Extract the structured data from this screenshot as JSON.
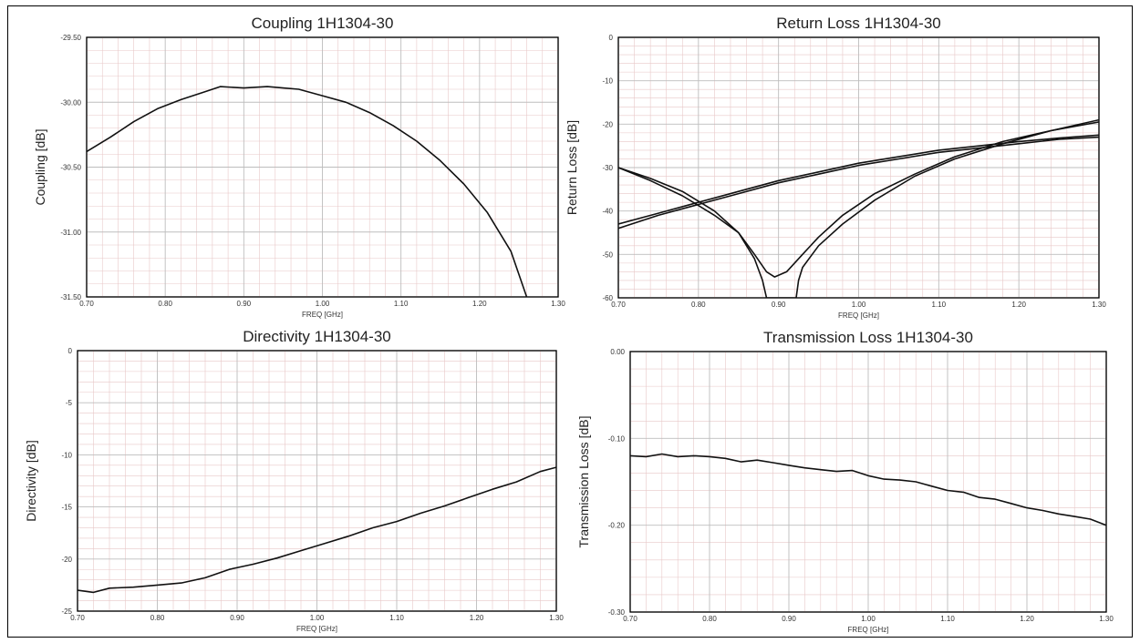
{
  "chart_data": [
    {
      "type": "line",
      "title": "Coupling 1H1304-30",
      "xlabel": "FREQ [GHz]",
      "ylabel": "Coupling [dB]",
      "xlim": [
        0.7,
        1.3
      ],
      "ylim": [
        -31.5,
        -29.5
      ],
      "xticks": [
        "0.70",
        "0.80",
        "0.90",
        "1.00",
        "1.10",
        "1.20",
        "1.30"
      ],
      "yticks": [
        "-29.50",
        "-30.00",
        "-30.50",
        "-31.00",
        "-31.50"
      ],
      "series": [
        {
          "x": [
            0.7,
            0.73,
            0.76,
            0.79,
            0.82,
            0.85,
            0.87,
            0.9,
            0.93,
            0.95,
            0.97,
            1.0,
            1.03,
            1.06,
            1.09,
            1.12,
            1.15,
            1.18,
            1.21,
            1.24,
            1.26
          ],
          "y": [
            -30.38,
            -30.27,
            -30.15,
            -30.05,
            -29.98,
            -29.92,
            -29.88,
            -29.89,
            -29.88,
            -29.89,
            -29.9,
            -29.95,
            -30.0,
            -30.08,
            -30.18,
            -30.3,
            -30.45,
            -30.63,
            -30.85,
            -31.15,
            -31.5
          ]
        }
      ]
    },
    {
      "type": "line",
      "title": "Return Loss 1H1304-30",
      "xlabel": "FREQ [GHz]",
      "ylabel": "Return Loss [dB]",
      "xlim": [
        0.7,
        1.3
      ],
      "ylim": [
        -60,
        0
      ],
      "xticks": [
        "0.70",
        "0.80",
        "0.90",
        "1.00",
        "1.10",
        "1.20",
        "1.30"
      ],
      "yticks": [
        "0",
        "-10",
        "-20",
        "-30",
        "-40",
        "-50",
        "-60"
      ],
      "series": [
        {
          "x": [
            0.7,
            0.75,
            0.8,
            0.85,
            0.9,
            0.95,
            1.0,
            1.05,
            1.1,
            1.15,
            1.2,
            1.25,
            1.3
          ],
          "y": [
            -44,
            -41,
            -38.5,
            -36,
            -33.5,
            -31.5,
            -29.5,
            -28,
            -26.5,
            -25.5,
            -24.5,
            -23.5,
            -23
          ]
        },
        {
          "x": [
            0.7,
            0.75,
            0.8,
            0.85,
            0.9,
            0.95,
            1.0,
            1.05,
            1.1,
            1.15,
            1.2,
            1.25,
            1.3
          ],
          "y": [
            -43,
            -40.5,
            -38,
            -35.5,
            -33,
            -31,
            -29,
            -27.5,
            -26,
            -25,
            -24,
            -23.2,
            -22.5
          ]
        },
        {
          "x": [
            0.7,
            0.74,
            0.78,
            0.82,
            0.85,
            0.87,
            0.885,
            0.895,
            0.91,
            0.93,
            0.95,
            0.98,
            1.02,
            1.07,
            1.12,
            1.18,
            1.24,
            1.3
          ],
          "y": [
            -30,
            -33,
            -36.5,
            -41,
            -45,
            -50,
            -54,
            -55.2,
            -54,
            -50,
            -46,
            -41,
            -36,
            -31.5,
            -27.5,
            -24,
            -21.5,
            -19.5
          ]
        },
        {
          "x": [
            0.7,
            0.74,
            0.78,
            0.82,
            0.85,
            0.87,
            0.88,
            0.885,
            0.922,
            0.925,
            0.93,
            0.95,
            0.98,
            1.02,
            1.07,
            1.12,
            1.18,
            1.24,
            1.3
          ],
          "y": [
            -30,
            -32.5,
            -35.5,
            -40,
            -45,
            -51,
            -56,
            -60,
            -60,
            -56,
            -53,
            -48,
            -43,
            -37.5,
            -32,
            -28,
            -24.5,
            -21.5,
            -19
          ]
        }
      ]
    },
    {
      "type": "line",
      "title": "Directivity 1H1304-30",
      "xlabel": "FREQ [GHz]",
      "ylabel": "Directivity [dB]",
      "xlim": [
        0.7,
        1.3
      ],
      "ylim": [
        -25,
        0
      ],
      "xticks": [
        "0.70",
        "0.80",
        "0.90",
        "1.00",
        "1.10",
        "1.20",
        "1.30"
      ],
      "yticks": [
        "0",
        "-5",
        "-10",
        "-15",
        "-20",
        "-25"
      ],
      "series": [
        {
          "x": [
            0.7,
            0.72,
            0.74,
            0.77,
            0.8,
            0.83,
            0.86,
            0.89,
            0.92,
            0.95,
            0.98,
            1.01,
            1.04,
            1.07,
            1.1,
            1.13,
            1.16,
            1.19,
            1.22,
            1.25,
            1.28,
            1.3
          ],
          "y": [
            -23,
            -23.2,
            -22.8,
            -22.7,
            -22.5,
            -22.3,
            -21.8,
            -21,
            -20.5,
            -19.9,
            -19.2,
            -18.5,
            -17.8,
            -17,
            -16.4,
            -15.6,
            -14.9,
            -14.1,
            -13.3,
            -12.6,
            -11.6,
            -11.2
          ]
        }
      ]
    },
    {
      "type": "line",
      "title": "Transmission Loss 1H1304-30",
      "xlabel": "FREQ [GHz]",
      "ylabel": "Transmission Loss [dB]",
      "xlim": [
        0.7,
        1.3
      ],
      "ylim": [
        -0.3,
        0.0
      ],
      "xticks": [
        "0.70",
        "0.80",
        "0.90",
        "1.00",
        "1.10",
        "1.20",
        "1.30"
      ],
      "yticks": [
        "0.00",
        "-0.10",
        "-0.20",
        "-0.30"
      ],
      "series": [
        {
          "x": [
            0.7,
            0.72,
            0.74,
            0.76,
            0.78,
            0.8,
            0.82,
            0.84,
            0.86,
            0.88,
            0.9,
            0.92,
            0.94,
            0.96,
            0.98,
            1.0,
            1.02,
            1.04,
            1.06,
            1.08,
            1.1,
            1.12,
            1.14,
            1.16,
            1.18,
            1.2,
            1.22,
            1.24,
            1.26,
            1.28,
            1.3
          ],
          "y": [
            -0.12,
            -0.121,
            -0.118,
            -0.121,
            -0.12,
            -0.121,
            -0.123,
            -0.127,
            -0.125,
            -0.128,
            -0.131,
            -0.134,
            -0.136,
            -0.138,
            -0.137,
            -0.143,
            -0.147,
            -0.148,
            -0.15,
            -0.155,
            -0.16,
            -0.162,
            -0.168,
            -0.17,
            -0.175,
            -0.18,
            -0.183,
            -0.187,
            -0.19,
            -0.193,
            -0.2
          ]
        }
      ]
    }
  ]
}
